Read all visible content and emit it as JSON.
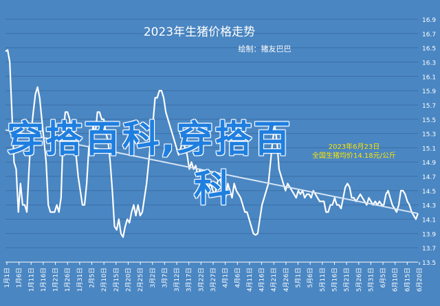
{
  "chart_data": {
    "type": "line",
    "title": "2023年生猪价格走势",
    "subtitle": "绘制：猪友巴巴",
    "annotation": "2023年6月23日\n全国生猪均价14.18元/公斤",
    "ylim": [
      13.5,
      16.9
    ],
    "yticks": [
      "16.9",
      "16.7",
      "16.5",
      "16.3",
      "16.1",
      "15.9",
      "15.7",
      "15.5",
      "15.3",
      "15.1",
      "14.9",
      "14.7",
      "14.5",
      "14.3",
      "14.1",
      "13.9",
      "13.7",
      "13.5"
    ],
    "xticks": [
      "1月1日",
      "1月6日",
      "1月11日",
      "1月16日",
      "1月21日",
      "1月26日",
      "1月31日",
      "2月5日",
      "2月10日",
      "2月15日",
      "2月20日",
      "2月25日",
      "3月2日",
      "3月7日",
      "3月12日",
      "3月17日",
      "3月22日",
      "3月27日",
      "4月1日",
      "4月6日",
      "4月11日",
      "4月16日",
      "4月21日",
      "4月26日",
      "5月1日",
      "5月6日",
      "5月11日",
      "5月16日",
      "5月21日",
      "5月26日",
      "5月31日",
      "6月5日",
      "6月10日",
      "6月15日",
      "6月20日"
    ],
    "x_start": "1月1日",
    "x_end": "6月23日",
    "series": [
      {
        "color": "#ffffff",
        "values": [
          [
            0,
            16.45
          ],
          [
            1,
            16.47
          ],
          [
            2,
            16.3
          ],
          [
            3,
            15.6
          ],
          [
            4,
            14.9
          ],
          [
            5,
            14.8
          ],
          [
            6,
            14.2
          ],
          [
            7,
            14.6
          ],
          [
            8,
            14.3
          ],
          [
            9,
            14.3
          ],
          [
            10,
            14.2
          ],
          [
            11,
            14.8
          ],
          [
            12,
            15.3
          ],
          [
            13,
            15.6
          ],
          [
            14,
            15.85
          ],
          [
            15,
            15.95
          ],
          [
            16,
            15.8
          ],
          [
            17,
            15.5
          ],
          [
            18,
            15.2
          ],
          [
            19,
            14.9
          ],
          [
            20,
            14.3
          ],
          [
            21,
            14.2
          ],
          [
            22,
            14.2
          ],
          [
            23,
            14.2
          ],
          [
            24,
            14.3
          ],
          [
            25,
            14.2
          ],
          [
            26,
            14.4
          ],
          [
            27,
            15.3
          ],
          [
            28,
            15.6
          ],
          [
            29,
            15.6
          ],
          [
            30,
            15.5
          ],
          [
            31,
            15.2
          ],
          [
            32,
            15.3
          ],
          [
            33,
            15.0
          ],
          [
            34,
            14.7
          ],
          [
            35,
            14.5
          ],
          [
            36,
            14.3
          ],
          [
            37,
            14.3
          ],
          [
            38,
            14.6
          ],
          [
            39,
            15.1
          ],
          [
            40,
            15.2
          ],
          [
            41,
            15.4
          ],
          [
            42,
            15.3
          ],
          [
            43,
            15.6
          ],
          [
            44,
            15.6
          ],
          [
            45,
            15.5
          ],
          [
            46,
            15.5
          ],
          [
            47,
            15.3
          ],
          [
            48,
            15.2
          ],
          [
            49,
            14.9
          ],
          [
            50,
            14.5
          ],
          [
            51,
            14.0
          ],
          [
            52,
            13.95
          ],
          [
            53,
            14.1
          ],
          [
            54,
            13.9
          ],
          [
            55,
            13.85
          ],
          [
            56,
            14.0
          ],
          [
            57,
            14.1
          ],
          [
            58,
            14.05
          ],
          [
            59,
            14.2
          ],
          [
            60,
            14.3
          ],
          [
            61,
            14.15
          ],
          [
            62,
            14.3
          ],
          [
            63,
            14.15
          ],
          [
            64,
            14.2
          ],
          [
            65,
            14.4
          ],
          [
            66,
            14.6
          ],
          [
            67,
            14.9
          ],
          [
            68,
            15.2
          ],
          [
            69,
            15.45
          ],
          [
            70,
            15.8
          ],
          [
            71,
            15.8
          ],
          [
            72,
            15.9
          ],
          [
            73,
            15.9
          ],
          [
            74,
            15.8
          ],
          [
            75,
            15.6
          ],
          [
            76,
            15.5
          ],
          [
            77,
            15.4
          ],
          [
            78,
            15.3
          ],
          [
            79,
            15.2
          ],
          [
            80,
            15.1
          ],
          [
            81,
            15.0
          ],
          [
            82,
            15.1
          ],
          [
            83,
            15.2
          ],
          [
            84,
            15.1
          ],
          [
            85,
            15.0
          ],
          [
            86,
            14.8
          ],
          [
            87,
            14.9
          ],
          [
            88,
            14.8
          ],
          [
            89,
            14.85
          ],
          [
            90,
            14.7
          ],
          [
            91,
            14.8
          ],
          [
            92,
            14.6
          ],
          [
            93,
            14.7
          ],
          [
            94,
            14.6
          ],
          [
            95,
            14.55
          ],
          [
            96,
            14.6
          ],
          [
            97,
            14.5
          ],
          [
            98,
            14.45
          ],
          [
            99,
            14.6
          ],
          [
            100,
            14.7
          ],
          [
            101,
            14.6
          ],
          [
            102,
            14.5
          ],
          [
            103,
            14.4
          ],
          [
            104,
            14.6
          ],
          [
            105,
            14.5
          ],
          [
            106,
            14.4
          ],
          [
            107,
            14.6
          ],
          [
            108,
            14.5
          ],
          [
            109,
            14.45
          ],
          [
            110,
            14.4
          ],
          [
            111,
            14.3
          ],
          [
            112,
            14.2
          ],
          [
            113,
            14.2
          ],
          [
            114,
            14.1
          ],
          [
            115,
            14.0
          ],
          [
            116,
            13.9
          ],
          [
            117,
            13.88
          ],
          [
            118,
            13.9
          ],
          [
            119,
            14.1
          ],
          [
            120,
            14.3
          ],
          [
            121,
            14.4
          ],
          [
            122,
            14.5
          ],
          [
            123,
            14.6
          ],
          [
            124,
            14.9
          ],
          [
            125,
            15.2
          ],
          [
            126,
            15.4
          ],
          [
            127,
            15.2
          ],
          [
            128,
            14.8
          ],
          [
            129,
            14.7
          ],
          [
            130,
            14.6
          ],
          [
            131,
            14.5
          ],
          [
            132,
            14.6
          ],
          [
            133,
            14.55
          ],
          [
            134,
            14.5
          ],
          [
            135,
            14.45
          ],
          [
            136,
            14.4
          ],
          [
            137,
            14.5
          ],
          [
            138,
            14.45
          ],
          [
            139,
            14.5
          ],
          [
            140,
            14.4
          ],
          [
            141,
            14.45
          ],
          [
            142,
            14.45
          ],
          [
            143,
            14.4
          ],
          [
            144,
            14.5
          ],
          [
            145,
            14.45
          ],
          [
            146,
            14.4
          ],
          [
            147,
            14.35
          ],
          [
            148,
            14.35
          ],
          [
            149,
            14.35
          ],
          [
            150,
            14.2
          ],
          [
            151,
            14.2
          ],
          [
            152,
            14.3
          ],
          [
            153,
            14.3
          ],
          [
            154,
            14.4
          ],
          [
            155,
            14.3
          ],
          [
            156,
            14.3
          ],
          [
            157,
            14.25
          ],
          [
            158,
            14.4
          ],
          [
            159,
            14.55
          ],
          [
            160,
            14.6
          ],
          [
            161,
            14.55
          ],
          [
            162,
            14.4
          ],
          [
            163,
            14.4
          ],
          [
            164,
            14.35
          ],
          [
            165,
            14.4
          ],
          [
            166,
            14.45
          ],
          [
            167,
            14.4
          ],
          [
            168,
            14.35
          ],
          [
            169,
            14.3
          ],
          [
            170,
            14.4
          ],
          [
            171,
            14.35
          ],
          [
            172,
            14.3
          ],
          [
            173,
            14.35
          ],
          [
            174,
            14.3
          ],
          [
            175,
            14.35
          ],
          [
            176,
            14.3
          ],
          [
            177,
            14.3
          ],
          [
            178,
            14.45
          ],
          [
            179,
            14.5
          ],
          [
            180,
            14.4
          ],
          [
            181,
            14.3
          ],
          [
            182,
            14.25
          ],
          [
            183,
            14.2
          ],
          [
            184,
            14.3
          ],
          [
            185,
            14.5
          ],
          [
            186,
            14.5
          ],
          [
            187,
            14.45
          ],
          [
            188,
            14.35
          ],
          [
            189,
            14.3
          ],
          [
            190,
            14.2
          ],
          [
            191,
            14.15
          ],
          [
            192,
            14.1
          ],
          [
            193,
            14.18
          ]
        ]
      },
      {
        "color": "#d8e6f5",
        "values": [
          [
            0,
            15.35
          ],
          [
            193,
            14.18
          ]
        ]
      }
    ],
    "grid": true,
    "legend": "none"
  },
  "watermark": {
    "line1": "穿搭百科,穿搭百",
    "line2": "科"
  },
  "colors": {
    "background": "#4a86c2",
    "grid": "#3a6fa6",
    "text": "#ffffff",
    "annotation": "#ffe600"
  }
}
